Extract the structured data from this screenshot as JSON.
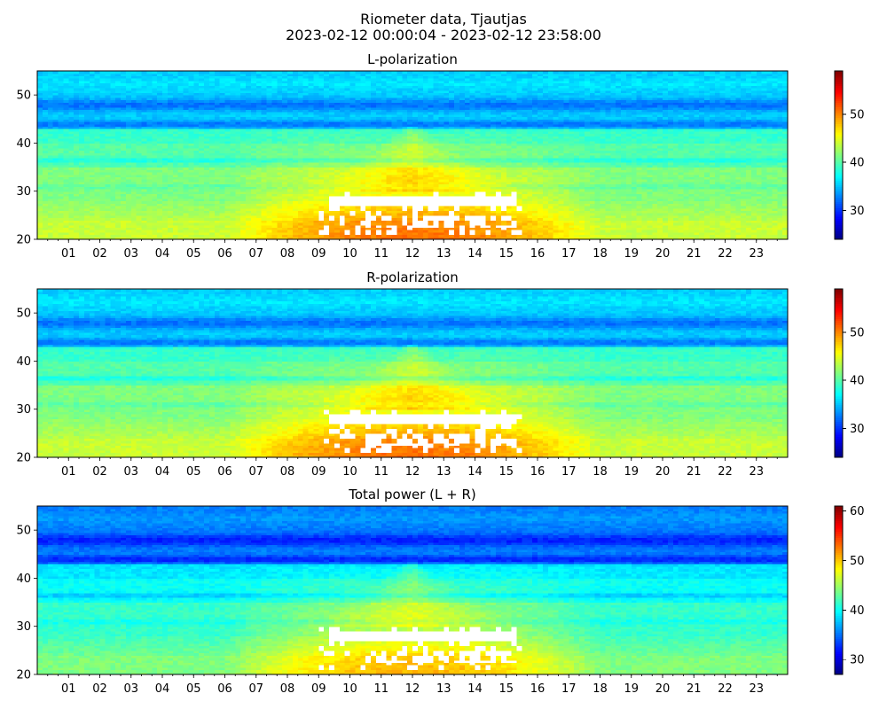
{
  "figure": {
    "title_line1": "Riometer data, Tjautjas",
    "title_line2": "2023-02-12 00:00:04 - 2023-02-12 23:58:00"
  },
  "chart_data": [
    {
      "type": "heatmap",
      "title": "L-polarization",
      "xlabel": "",
      "ylabel": "",
      "x_unit": "hour of day (UTC)",
      "x_range": [
        0,
        24
      ],
      "x_ticklabels": [
        "01",
        "02",
        "03",
        "04",
        "05",
        "06",
        "07",
        "08",
        "09",
        "10",
        "11",
        "12",
        "13",
        "14",
        "15",
        "16",
        "17",
        "18",
        "19",
        "20",
        "21",
        "22",
        "23"
      ],
      "ylim": [
        20,
        55
      ],
      "y_ticks": [
        20,
        30,
        40,
        50
      ],
      "colormap": "jet",
      "color_range": [
        24,
        59
      ],
      "colorbar_ticks": [
        30,
        40,
        50
      ],
      "features": {
        "dark_band_rows": [
          48,
          44,
          36.5,
          31
        ],
        "enhancement_hours": [
          6,
          18
        ],
        "saturated_region_hours": [
          9,
          15.5
        ],
        "saturated_region_rows": [
          21,
          30
        ],
        "saturated_fill": "white"
      }
    },
    {
      "type": "heatmap",
      "title": "R-polarization",
      "xlabel": "",
      "ylabel": "",
      "x_unit": "hour of day (UTC)",
      "x_range": [
        0,
        24
      ],
      "x_ticklabels": [
        "01",
        "02",
        "03",
        "04",
        "05",
        "06",
        "07",
        "08",
        "09",
        "10",
        "11",
        "12",
        "13",
        "14",
        "15",
        "16",
        "17",
        "18",
        "19",
        "20",
        "21",
        "22",
        "23"
      ],
      "ylim": [
        20,
        55
      ],
      "y_ticks": [
        20,
        30,
        40,
        50
      ],
      "colormap": "jet",
      "color_range": [
        24,
        59
      ],
      "colorbar_ticks": [
        30,
        40,
        50
      ],
      "features": {
        "dark_band_rows": [
          48,
          44,
          36.5,
          31
        ],
        "enhancement_hours": [
          6,
          18
        ],
        "saturated_region_hours": [
          9,
          15.5
        ],
        "saturated_region_rows": [
          21,
          30
        ],
        "saturated_fill": "white"
      }
    },
    {
      "type": "heatmap",
      "title": "Total power (L + R)",
      "xlabel": "",
      "ylabel": "",
      "x_unit": "hour of day (UTC)",
      "x_range": [
        0,
        24
      ],
      "x_ticklabels": [
        "01",
        "02",
        "03",
        "04",
        "05",
        "06",
        "07",
        "08",
        "09",
        "10",
        "11",
        "12",
        "13",
        "14",
        "15",
        "16",
        "17",
        "18",
        "19",
        "20",
        "21",
        "22",
        "23"
      ],
      "ylim": [
        20,
        55
      ],
      "y_ticks": [
        20,
        30,
        40,
        50
      ],
      "colormap": "jet",
      "color_range": [
        27,
        61
      ],
      "colorbar_ticks": [
        30,
        40,
        50,
        60
      ],
      "features": {
        "dark_band_rows": [
          48,
          44,
          36.5,
          31
        ],
        "enhancement_hours": [
          6,
          18
        ],
        "saturated_region_hours": [
          9,
          15.5
        ],
        "saturated_region_rows": [
          21,
          30
        ],
        "saturated_fill": "white"
      }
    }
  ]
}
